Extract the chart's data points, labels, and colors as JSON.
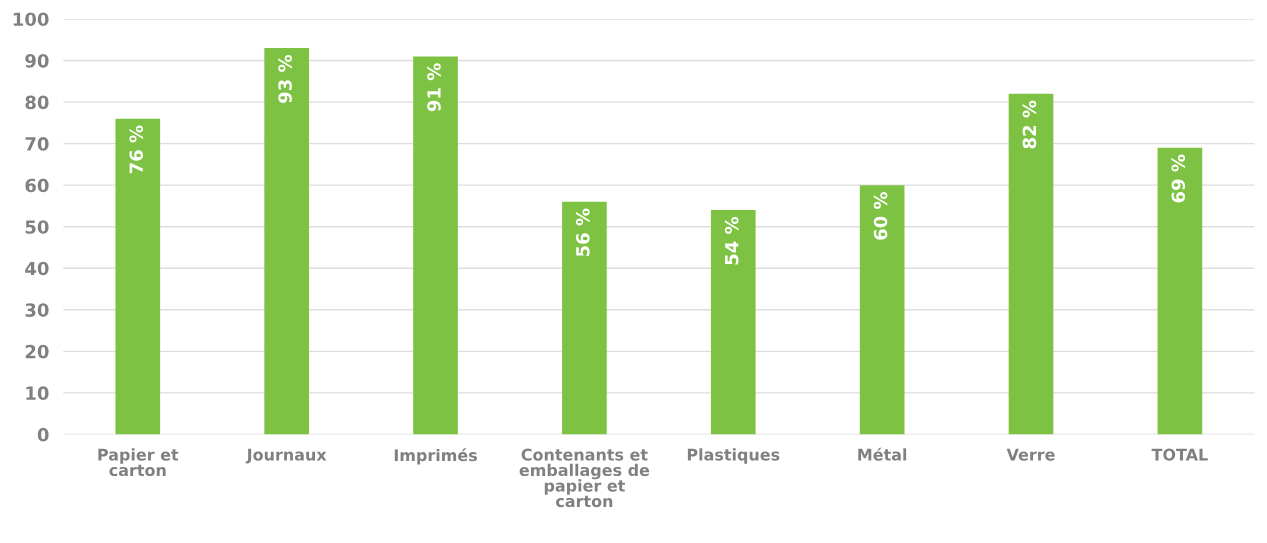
{
  "chart_data": {
    "type": "bar",
    "categories": [
      "Papier et carton",
      "Journaux",
      "Imprimés",
      "Contenants et emballages de papier et carton",
      "Plastiques",
      "Métal",
      "Verre",
      "TOTAL"
    ],
    "values": [
      76,
      93,
      91,
      56,
      54,
      60,
      82,
      69
    ],
    "value_labels": [
      "76 %",
      "93 %",
      "91 %",
      "56 %",
      "54 %",
      "60 %",
      "82 %",
      "69 %"
    ],
    "color": "#7dc242",
    "ylim": [
      0,
      100
    ],
    "yticks": [
      0,
      10,
      20,
      30,
      40,
      50,
      60,
      70,
      80,
      90,
      100
    ],
    "grid": "y",
    "legend": false
  }
}
